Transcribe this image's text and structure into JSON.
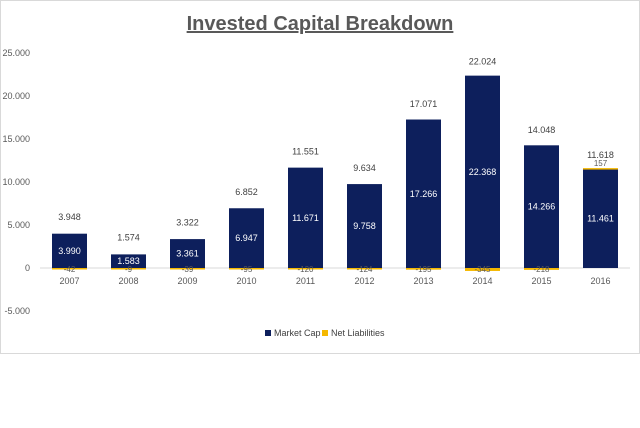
{
  "chart_data": {
    "type": "bar",
    "title": "Invested Capital Breakdown",
    "categories": [
      "2007",
      "2008",
      "2009",
      "2010",
      "2011",
      "2012",
      "2013",
      "2014",
      "2015",
      "2016"
    ],
    "series": [
      {
        "name": "Market Cap",
        "color": "#0d1f5c",
        "values": [
          3990,
          1583,
          3361,
          6947,
          11671,
          9758,
          17266,
          22368,
          14266,
          11461
        ],
        "labels": [
          "3.990",
          "1.583",
          "3.361",
          "6.947",
          "11.671",
          "9.758",
          "17.266",
          "22.368",
          "14.266",
          "11.461"
        ]
      },
      {
        "name": "Net Liabilities",
        "color": "#f5b800",
        "values": [
          -42,
          -9,
          -39,
          -95,
          -120,
          -124,
          -195,
          -345,
          -218,
          157
        ],
        "labels": [
          "-42",
          "-9",
          "-39",
          "-95",
          "-120",
          "-124",
          "-195",
          "-345",
          "-218",
          "157"
        ]
      }
    ],
    "totals": {
      "values": [
        3948,
        1574,
        3322,
        6852,
        11551,
        9634,
        17071,
        22024,
        14048,
        11618
      ],
      "labels": [
        "3.948",
        "1.574",
        "3.322",
        "6.852",
        "11.551",
        "9.634",
        "17.071",
        "22.024",
        "14.048",
        "11.618"
      ]
    },
    "yticks": {
      "values": [
        -5000,
        0,
        5000,
        10000,
        15000,
        20000,
        25000
      ],
      "labels": [
        "-5.000",
        "0",
        "5.000",
        "10.000",
        "15.000",
        "20.000",
        "25.000"
      ]
    },
    "ylim": [
      -5000,
      25000
    ],
    "grid": false,
    "legend": "bottom",
    "stacked": true
  }
}
